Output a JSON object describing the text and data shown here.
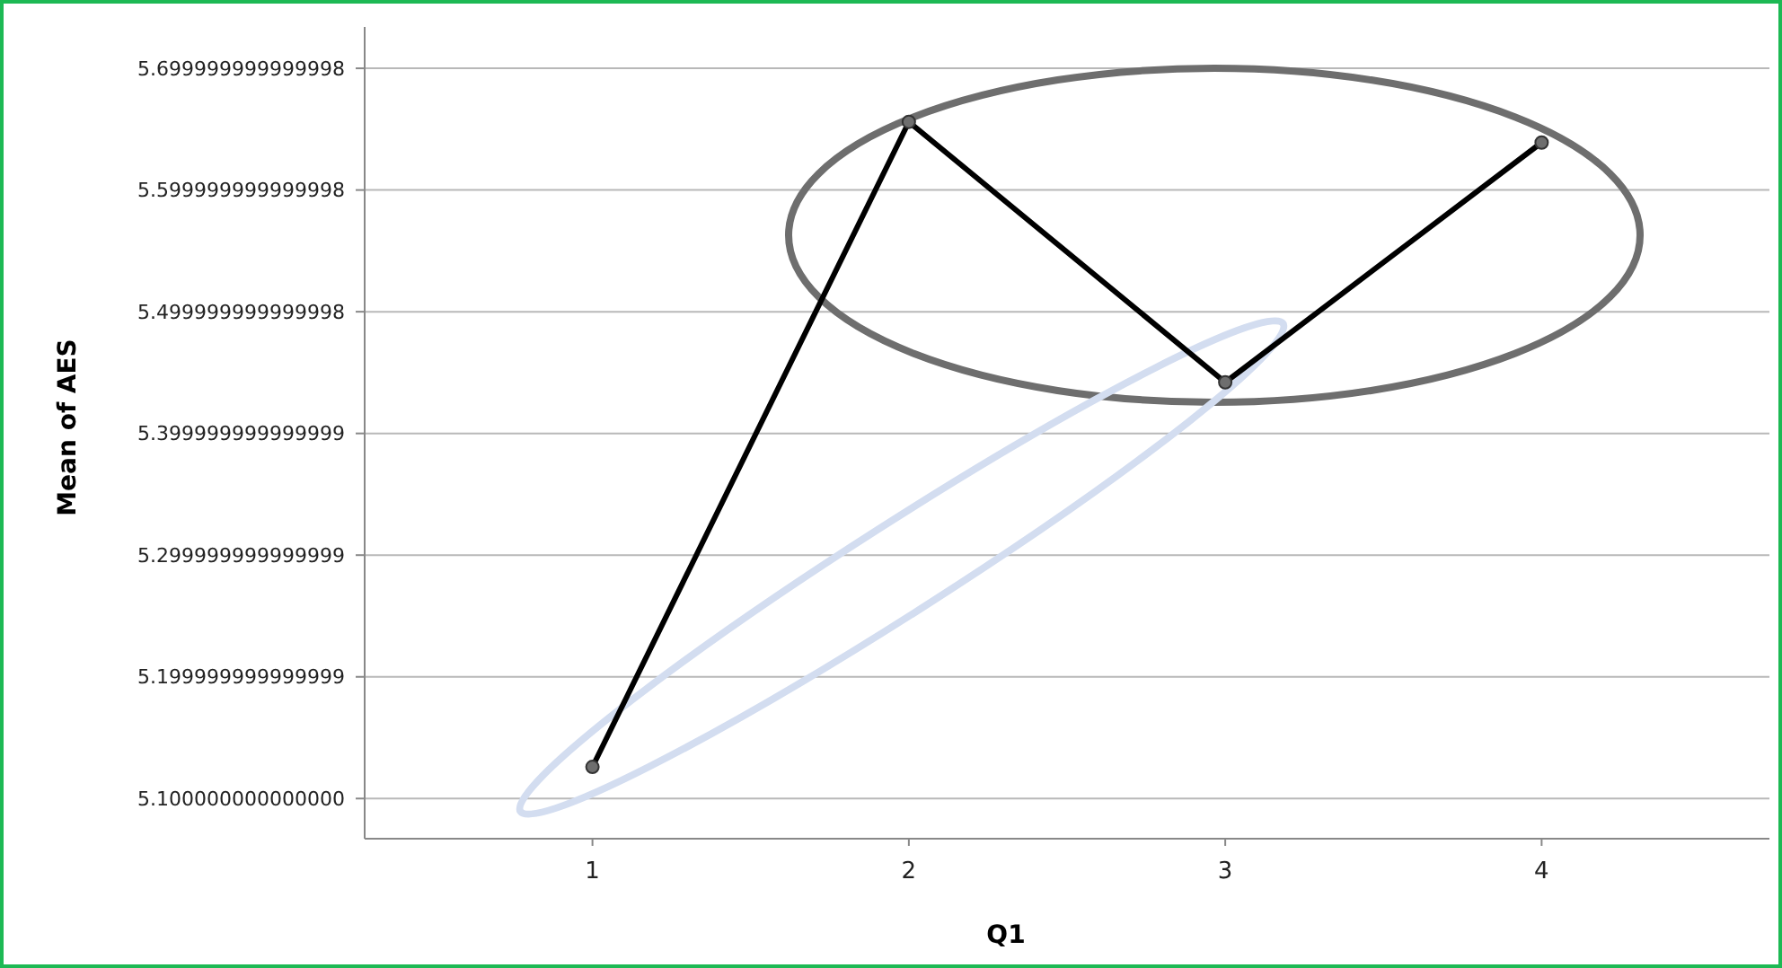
{
  "chart_data": {
    "type": "line",
    "xlabel": "Q1",
    "ylabel": "Mean of AES",
    "categories": [
      "1",
      "2",
      "3",
      "4"
    ],
    "series": [
      {
        "color": "#000000",
        "values": [
          5.126,
          5.656,
          5.442,
          5.639
        ]
      }
    ],
    "ylim": [
      5.067,
      5.734
    ],
    "yticks": [
      {
        "value": 5.1,
        "label": "5.100000000000000"
      },
      {
        "value": 5.2,
        "label": "5.199999999999999"
      },
      {
        "value": 5.3,
        "label": "5.299999999999999"
      },
      {
        "value": 5.4,
        "label": "5.399999999999999"
      },
      {
        "value": 5.5,
        "label": "5.499999999999998"
      },
      {
        "value": 5.6,
        "label": "5.599999999999998"
      },
      {
        "value": 5.7,
        "label": "5.699999999999998"
      }
    ],
    "grid": "y",
    "marker": "circle",
    "line_style": "solid"
  }
}
